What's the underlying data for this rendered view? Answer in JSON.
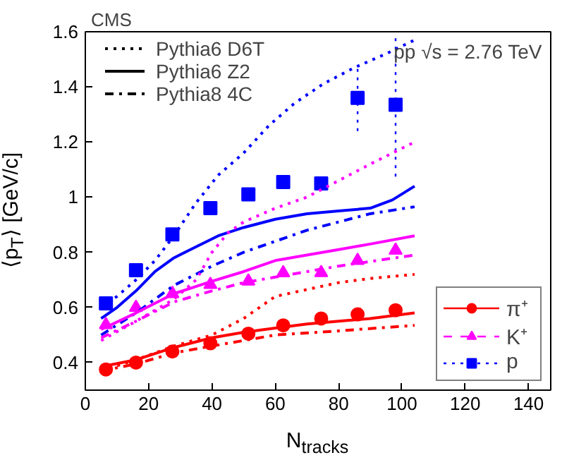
{
  "chart_data": {
    "type": "scatter",
    "title": "CMS",
    "xlabel": "N$_{tracks}$",
    "ylabel": "⟨p$_{T}$⟩ [GeV/c]",
    "annotations": [
      "pp √s = 2.76 TeV",
      "Pythia6 D6T",
      "Pythia6 Z2",
      "Pythia8 4C"
    ],
    "xlim": [
      0,
      147
    ],
    "ylim": [
      0.3,
      1.6
    ],
    "xticks": [
      0,
      20,
      40,
      60,
      80,
      100,
      120,
      140
    ],
    "yticks": [
      0.4,
      0.6,
      0.8,
      1,
      1.2,
      1.4,
      1.6
    ],
    "grid": false,
    "legend": "bottom right",
    "x": [
      6.5,
      16,
      27.5,
      39.5,
      51.5,
      62.5,
      74.5,
      86,
      98
    ],
    "series": [
      {
        "name": "π⁺",
        "color": "#ff0000",
        "marker": "circle",
        "line_style": "solid",
        "values": [
          0.375,
          0.4,
          0.44,
          0.47,
          0.505,
          0.535,
          0.56,
          0.575,
          0.59
        ]
      },
      {
        "name": "K⁺",
        "color": "#ff00ff",
        "marker": "triangle",
        "line_style": "dashed",
        "values": [
          0.537,
          0.6,
          0.65,
          0.683,
          0.695,
          0.725,
          0.726,
          0.77,
          0.807
        ]
      },
      {
        "name": "p",
        "color": "#0000ff",
        "marker": "square",
        "line_style": "dotted",
        "values": [
          0.615,
          0.735,
          0.865,
          0.96,
          1.01,
          1.055,
          1.05,
          1.36,
          1.335
        ],
        "errors": [
          null,
          null,
          null,
          null,
          null,
          null,
          null,
          0.12,
          0.26
        ]
      },
      {
        "type": "line",
        "color": "#0000ff",
        "line_style": "dotted",
        "x": [
          5,
          10,
          16,
          22,
          28,
          35,
          42,
          50,
          58,
          66,
          75,
          85,
          95,
          104
        ],
        "values": [
          0.6,
          0.64,
          0.7,
          0.77,
          0.86,
          0.98,
          1.08,
          1.16,
          1.26,
          1.34,
          1.41,
          1.47,
          1.52,
          1.57
        ]
      },
      {
        "type": "line",
        "color": "#0000ff",
        "line_style": "solid",
        "x": [
          5,
          10,
          16,
          22,
          28,
          35,
          42,
          50,
          60,
          70,
          80,
          90,
          97,
          104
        ],
        "values": [
          0.56,
          0.6,
          0.66,
          0.73,
          0.78,
          0.82,
          0.86,
          0.89,
          0.92,
          0.94,
          0.95,
          0.96,
          0.99,
          1.04
        ]
      },
      {
        "type": "line",
        "color": "#0000ff",
        "line_style": "dashdot",
        "x": [
          5,
          16,
          28,
          40,
          50,
          60,
          70,
          80,
          90,
          104
        ],
        "values": [
          0.5,
          0.58,
          0.68,
          0.75,
          0.8,
          0.84,
          0.88,
          0.91,
          0.94,
          0.965
        ]
      },
      {
        "type": "line",
        "color": "#ff00ff",
        "line_style": "dotted",
        "x": [
          5,
          16,
          28,
          35,
          40,
          45,
          50,
          60,
          70,
          80,
          90,
          104
        ],
        "values": [
          0.48,
          0.55,
          0.63,
          0.7,
          0.8,
          0.87,
          0.91,
          0.96,
          1.0,
          1.06,
          1.12,
          1.2
        ]
      },
      {
        "type": "line",
        "color": "#ff00ff",
        "line_style": "solid",
        "x": [
          5,
          16,
          28,
          40,
          50,
          60,
          70,
          80,
          90,
          104
        ],
        "values": [
          0.52,
          0.58,
          0.65,
          0.695,
          0.73,
          0.77,
          0.79,
          0.81,
          0.83,
          0.86
        ]
      },
      {
        "type": "line",
        "color": "#ff00ff",
        "line_style": "dashdot",
        "x": [
          5,
          16,
          28,
          40,
          50,
          60,
          80,
          104
        ],
        "values": [
          0.49,
          0.55,
          0.62,
          0.66,
          0.69,
          0.71,
          0.75,
          0.79
        ]
      },
      {
        "type": "line",
        "color": "#ff0000",
        "line_style": "dotted",
        "x": [
          5,
          16,
          28,
          40,
          50,
          60,
          70,
          80,
          90,
          104
        ],
        "values": [
          0.37,
          0.41,
          0.46,
          0.5,
          0.56,
          0.64,
          0.665,
          0.69,
          0.705,
          0.72
        ]
      },
      {
        "type": "line",
        "color": "#ff0000",
        "line_style": "solid",
        "x": [
          5,
          16,
          28,
          40,
          50,
          60,
          70,
          80,
          90,
          104
        ],
        "values": [
          0.385,
          0.41,
          0.455,
          0.49,
          0.51,
          0.525,
          0.54,
          0.55,
          0.56,
          0.58
        ]
      },
      {
        "type": "line",
        "color": "#ff0000",
        "line_style": "dashdot",
        "x": [
          5,
          16,
          28,
          40,
          50,
          60,
          80,
          104
        ],
        "values": [
          0.37,
          0.395,
          0.435,
          0.46,
          0.48,
          0.5,
          0.515,
          0.535
        ]
      }
    ]
  }
}
